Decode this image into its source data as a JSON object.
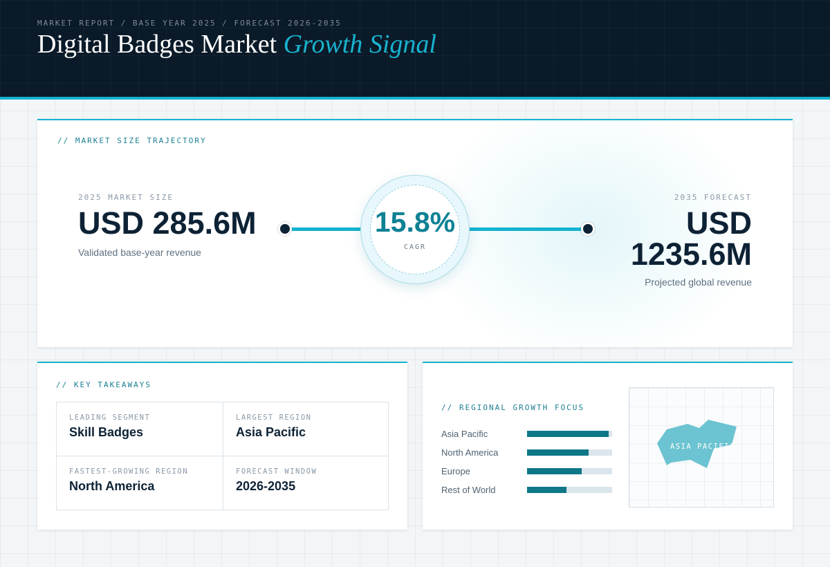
{
  "header": {
    "breadcrumb": "MARKET REPORT / BASE YEAR 2025 / FORECAST 2026-2035",
    "title_main": "Digital Badges Market ",
    "title_accent": "Growth Signal"
  },
  "trajectory": {
    "section_label": "// MARKET SIZE TRAJECTORY",
    "start": {
      "label": "2025 MARKET SIZE",
      "value": "USD 285.6M",
      "caption": "Validated base-year revenue"
    },
    "cagr": {
      "value": "15.8%",
      "label": "CAGR"
    },
    "end": {
      "label": "2035 FORECAST",
      "value_line1": "USD",
      "value_line2": "1235.6M",
      "caption": "Projected global revenue"
    }
  },
  "takeaways": {
    "section_label": "// KEY TAKEAWAYS",
    "items": [
      {
        "label": "LEADING SEGMENT",
        "value": "Skill Badges"
      },
      {
        "label": "LARGEST REGION",
        "value": "Asia Pacific"
      },
      {
        "label": "FASTEST-GROWING REGION",
        "value": "North America"
      },
      {
        "label": "FORECAST WINDOW",
        "value": "2026-2035"
      }
    ]
  },
  "regional": {
    "section_label": "// REGIONAL GROWTH FOCUS",
    "bars": [
      {
        "name": "Asia Pacific",
        "share": 0.96
      },
      {
        "name": "North America",
        "share": 0.72
      },
      {
        "name": "Europe",
        "share": 0.64
      },
      {
        "name": "Rest of World",
        "share": 0.46
      }
    ],
    "map_label": "ASIA PACIFIC",
    "map_color": "#6cc3d1"
  },
  "colors": {
    "accent": "#14b3cf",
    "header_bg": "#0a1a28",
    "bar_fill": "#0e7788"
  }
}
